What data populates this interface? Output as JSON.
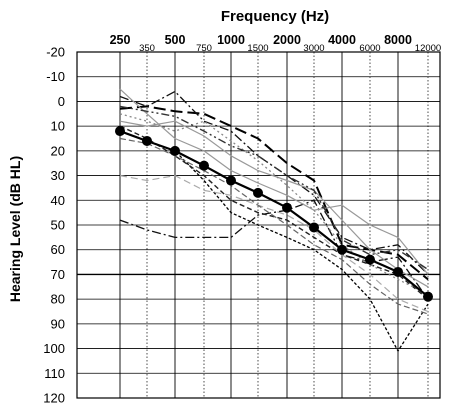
{
  "chart_data": {
    "type": "line",
    "title": "Frequency (Hz)",
    "xlabel": "Frequency (Hz)",
    "ylabel": "Hearing Level (dB HL)",
    "x_scale": "log",
    "x": [
      250,
      350,
      500,
      750,
      1000,
      1500,
      2000,
      3000,
      4000,
      6000,
      8000,
      12000
    ],
    "x_tick_labels_major": [
      "250",
      "500",
      "1000",
      "2000",
      "4000",
      "8000"
    ],
    "x_tick_labels_minor": [
      "350",
      "750",
      "1500",
      "3000",
      "6000",
      "12000"
    ],
    "y_ticks": [
      -20,
      -10,
      0,
      10,
      20,
      30,
      40,
      50,
      60,
      70,
      80,
      90,
      100,
      110,
      120
    ],
    "ylim": [
      -20,
      120
    ],
    "y_inverted": true,
    "grid": true,
    "series": [
      {
        "style": "mean",
        "values": [
          12,
          16,
          20,
          26,
          32,
          37,
          43,
          51,
          60,
          64,
          69,
          79
        ]
      },
      {
        "style": "dash-dot",
        "values": [
          48,
          52,
          55,
          55,
          55,
          46,
          44,
          40,
          62,
          65,
          63,
          80
        ]
      },
      {
        "style": "long-dash",
        "values": [
          3,
          2,
          4,
          5,
          10,
          15,
          25,
          32,
          58,
          60,
          62,
          72
        ]
      },
      {
        "style": "dash-dot",
        "values": [
          -2,
          2,
          -4,
          8,
          12,
          22,
          30,
          38,
          55,
          60,
          58,
          70
        ]
      },
      {
        "style": "dotted",
        "values": [
          12,
          16,
          20,
          32,
          45,
          50,
          55,
          60,
          68,
          80,
          101,
          82
        ]
      },
      {
        "style": "short-dash",
        "values": [
          10,
          15,
          22,
          30,
          40,
          45,
          48,
          55,
          62,
          66,
          70,
          80
        ]
      },
      {
        "style": "light-solid",
        "values": [
          -5,
          5,
          15,
          20,
          28,
          33,
          38,
          44,
          42,
          50,
          55,
          70
        ]
      },
      {
        "style": "light-solid",
        "values": [
          8,
          10,
          8,
          14,
          22,
          28,
          32,
          36,
          48,
          60,
          68,
          75
        ]
      },
      {
        "style": "light-dash",
        "values": [
          30,
          32,
          30,
          36,
          38,
          42,
          46,
          52,
          62,
          70,
          80,
          85
        ]
      },
      {
        "style": "gray-dot",
        "values": [
          5,
          8,
          12,
          8,
          16,
          24,
          34,
          44,
          58,
          66,
          72,
          78
        ]
      },
      {
        "style": "dash-dot-dot",
        "values": [
          2,
          4,
          6,
          12,
          18,
          22,
          30,
          36,
          56,
          62,
          60,
          68
        ]
      },
      {
        "style": "gray-dash",
        "values": [
          15,
          17,
          22,
          28,
          34,
          42,
          50,
          58,
          64,
          74,
          82,
          86
        ]
      }
    ]
  }
}
